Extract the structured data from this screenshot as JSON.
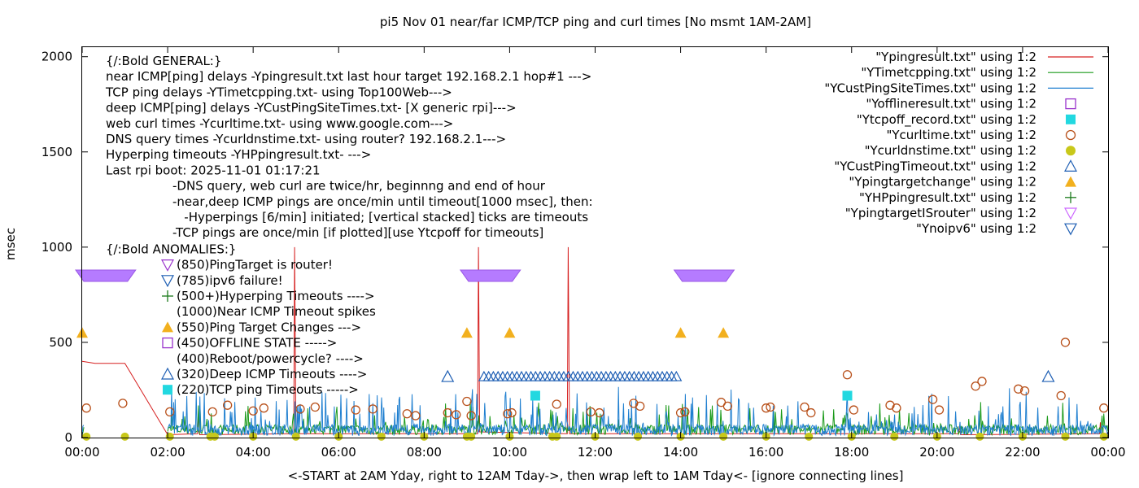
{
  "chart_data": {
    "type": "line",
    "title": "pi5 Nov 01  near/far ICMP/TCP ping and curl times [No msmt 1AM-2AM]",
    "xlabel": "<-START at 2AM Yday, right to 12AM Tday->, then wrap left to 1AM Tday<- [ignore connecting lines]",
    "ylabel": "msec",
    "xlim": [
      0,
      24
    ],
    "ylim": [
      0,
      2050
    ],
    "grid": false,
    "legend_position": "top-right",
    "x_ticks": [
      {
        "x": 0,
        "label": "00:00"
      },
      {
        "x": 2,
        "label": "02:00"
      },
      {
        "x": 4,
        "label": "04:00"
      },
      {
        "x": 6,
        "label": "06:00"
      },
      {
        "x": 8,
        "label": "08:00"
      },
      {
        "x": 10,
        "label": "10:00"
      },
      {
        "x": 12,
        "label": "12:00"
      },
      {
        "x": 14,
        "label": "14:00"
      },
      {
        "x": 16,
        "label": "16:00"
      },
      {
        "x": 18,
        "label": "18:00"
      },
      {
        "x": 20,
        "label": "20:00"
      },
      {
        "x": 22,
        "label": "22:00"
      },
      {
        "x": 24,
        "label": "00:00"
      }
    ],
    "y_ticks": [
      {
        "y": 0,
        "label": "0"
      },
      {
        "y": 500,
        "label": "500"
      },
      {
        "y": 1000,
        "label": "1000"
      },
      {
        "y": 1500,
        "label": "1500"
      },
      {
        "y": 2000,
        "label": "2000"
      }
    ],
    "annotations_left": [
      "{/:Bold GENERAL:}",
      "near ICMP[ping] delays -Ypingresult.txt last hour target 192.168.2.1 hop#1 --->",
      "TCP ping delays -YTimetcpping.txt- using Top100Web--->",
      "deep ICMP[ping] delays -YCustPingSiteTimes.txt- [X generic rpi]--->",
      "web curl times -Ycurltime.txt- using www.google.com--->",
      "DNS query times -Ycurldnstime.txt- using router? 192.168.2.1--->",
      "Hyperping timeouts -YHPpingresult.txt- --->",
      "Last rpi boot: 2025-11-01 01:17:21"
    ],
    "annotations_indent": [
      "-DNS query, web curl are twice/hr, beginnng and end of hour",
      "-near,deep ICMP pings are once/min until timeout[1000 msec], then:",
      "  -Hyperpings [6/min] initiated; [vertical stacked] ticks are timeouts",
      "-TCP pings are once/min [if plotted][use Ytcpoff for timeouts]"
    ],
    "anomalies_title": "{/:Bold ANOMALIES:}",
    "anomalies": [
      {
        "label": "(850)PingTarget is router!",
        "marker": "tri-down-open",
        "color": "#9933cc"
      },
      {
        "label": "(785)ipv6 failure!",
        "marker": "tri-down-open",
        "color": "#1f5fb4"
      },
      {
        "label": "(500+)Hyperping Timeouts ---->",
        "marker": "plus",
        "color": "#1a7a1a"
      },
      {
        "label": "(1000)Near ICMP Timeout spikes",
        "marker": "none",
        "color": "#000000"
      },
      {
        "label": "(550)Ping Target Changes --->",
        "marker": "tri-up-filled",
        "color": "#f2b01e"
      },
      {
        "label": "(450)OFFLINE STATE ----->",
        "marker": "square-open",
        "color": "#9933cc"
      },
      {
        "label": "(400)Reboot/powercycle? ---->",
        "marker": "none",
        "color": "#000000"
      },
      {
        "label": "(320)Deep ICMP Timeouts ---->",
        "marker": "tri-up-open",
        "color": "#1f5fb4"
      },
      {
        "label": "(220)TCP ping Timeouts ----->",
        "marker": "square-filled",
        "color": "#22d8e0"
      }
    ],
    "legend": [
      {
        "label": "\"Ypingresult.txt\" using 1:2",
        "marker": "line",
        "color": "#d62020"
      },
      {
        "label": "\"YTimetcpping.txt\" using 1:2",
        "marker": "line",
        "color": "#1a9a1a"
      },
      {
        "label": "\"YCustPingSiteTimes.txt\" using 1:2",
        "marker": "line",
        "color": "#1f7fd0"
      },
      {
        "label": "\"Yofflineresult.txt\" using 1:2",
        "marker": "square-open",
        "color": "#9933cc"
      },
      {
        "label": "\"Ytcpoff_record.txt\" using 1:2",
        "marker": "square-filled",
        "color": "#22d8e0"
      },
      {
        "label": "\"Ycurltime.txt\" using 1:2",
        "marker": "circle-open",
        "color": "#b8501a"
      },
      {
        "label": "\"Ycurldnstime.txt\" using 1:2",
        "marker": "circle-filled",
        "color": "#c8c81a"
      },
      {
        "label": "\"YCustPingTimeout.txt\" using 1:2",
        "marker": "tri-up-open",
        "color": "#1f5fb4"
      },
      {
        "label": "\"Ypingtargetchange\" using 1:2",
        "marker": "tri-up-filled",
        "color": "#f2b01e"
      },
      {
        "label": "\"YHPpingresult.txt\" using 1:2",
        "marker": "plus",
        "color": "#1a7a1a"
      },
      {
        "label": "\"YpingtargetISrouter\" using 1:2",
        "marker": "tri-down-open",
        "color": "#cc66ff"
      },
      {
        "label": "\"Ynoipv6\" using 1:2",
        "marker": "tri-down-open",
        "color": "#1f5fb4"
      }
    ],
    "series": [
      {
        "name": "\"Ypingresult.txt\" using 1:2",
        "color": "#d62020",
        "points": [
          [
            0.0,
            400
          ],
          [
            0.3,
            390
          ],
          [
            1.0,
            390
          ],
          [
            2.0,
            15
          ],
          [
            2.7,
            20
          ],
          [
            2.72,
            120
          ],
          [
            2.75,
            15
          ],
          [
            4.95,
            20
          ],
          [
            4.97,
            1000
          ],
          [
            5.0,
            30
          ],
          [
            5.05,
            20
          ],
          [
            9.25,
            20
          ],
          [
            9.27,
            1000
          ],
          [
            9.3,
            30
          ],
          [
            11.35,
            20
          ],
          [
            11.37,
            1000
          ],
          [
            11.4,
            20
          ],
          [
            20.5,
            20
          ],
          [
            20.52,
            60
          ],
          [
            20.55,
            15
          ],
          [
            23.8,
            20
          ],
          [
            23.82,
            80
          ],
          [
            23.85,
            20
          ],
          [
            24.0,
            20
          ]
        ]
      },
      {
        "name": "\"YTimetcpping.txt\" using 1:2",
        "color": "#1a9a1a",
        "noise": {
          "start": 0.0,
          "end": 24.0,
          "base": 35,
          "amp": 55,
          "spike_prob": 0.12,
          "spike_amp": 130,
          "step": 0.02,
          "seed": 7,
          "gaps": [
            [
              0.05,
              2.0
            ]
          ]
        }
      },
      {
        "name": "\"YCustPingSiteTimes.txt\" using 1:2",
        "color": "#1f7fd0",
        "noise": {
          "start": 0.0,
          "end": 24.0,
          "base": 25,
          "amp": 60,
          "spike_prob": 0.15,
          "spike_amp": 200,
          "step": 0.017,
          "seed": 13,
          "gaps": [
            [
              0.05,
              2.0
            ]
          ]
        }
      }
    ],
    "ping_target_isrouter_bars": [
      {
        "x_start": 0.0,
        "x_end": 1.1,
        "y": 850
      },
      {
        "x_start": 9.0,
        "x_end": 10.1,
        "y": 850
      },
      {
        "x_start": 14.0,
        "x_end": 15.1,
        "y": 850
      }
    ],
    "ping_target_changes": [
      [
        0.0,
        550
      ],
      [
        9.0,
        550
      ],
      [
        10.0,
        550
      ],
      [
        14.0,
        550
      ],
      [
        15.0,
        550
      ]
    ],
    "offline_state": [],
    "deep_icmp_timeouts": {
      "single": [
        [
          8.55,
          320
        ],
        [
          22.6,
          320
        ]
      ],
      "dense_range": [
        9.4,
        13.9
      ],
      "dense_count": 42,
      "y": 320
    },
    "tcp_ping_timeouts": [
      [
        10.6,
        220
      ],
      [
        17.9,
        220
      ]
    ],
    "curl_times": [
      [
        0.1,
        155
      ],
      [
        0.95,
        180
      ],
      [
        2.05,
        135
      ],
      [
        3.05,
        135
      ],
      [
        3.4,
        170
      ],
      [
        4.0,
        140
      ],
      [
        4.25,
        155
      ],
      [
        5.1,
        150
      ],
      [
        5.45,
        160
      ],
      [
        6.4,
        145
      ],
      [
        6.8,
        150
      ],
      [
        7.6,
        125
      ],
      [
        7.8,
        115
      ],
      [
        8.55,
        130
      ],
      [
        8.75,
        120
      ],
      [
        9.0,
        190
      ],
      [
        9.1,
        115
      ],
      [
        9.95,
        125
      ],
      [
        10.05,
        130
      ],
      [
        11.1,
        175
      ],
      [
        11.9,
        135
      ],
      [
        12.1,
        130
      ],
      [
        12.9,
        180
      ],
      [
        13.05,
        165
      ],
      [
        14.0,
        130
      ],
      [
        14.1,
        135
      ],
      [
        14.95,
        185
      ],
      [
        15.1,
        165
      ],
      [
        16.0,
        155
      ],
      [
        16.1,
        160
      ],
      [
        16.9,
        160
      ],
      [
        17.05,
        130
      ],
      [
        17.9,
        330
      ],
      [
        18.05,
        145
      ],
      [
        18.9,
        170
      ],
      [
        19.05,
        155
      ],
      [
        19.9,
        200
      ],
      [
        20.05,
        145
      ],
      [
        20.9,
        270
      ],
      [
        21.05,
        295
      ],
      [
        21.9,
        255
      ],
      [
        22.05,
        245
      ],
      [
        22.9,
        220
      ],
      [
        23.0,
        500
      ],
      [
        23.9,
        155
      ]
    ],
    "dns_times": [
      [
        0.1,
        5
      ],
      [
        1.0,
        5
      ],
      [
        2.05,
        5
      ],
      [
        3.0,
        5
      ],
      [
        3.1,
        5
      ],
      [
        4.0,
        5
      ],
      [
        5.0,
        5
      ],
      [
        6.0,
        5
      ],
      [
        7.0,
        5
      ],
      [
        8.0,
        5
      ],
      [
        9.0,
        5
      ],
      [
        9.1,
        5
      ],
      [
        10.0,
        5
      ],
      [
        11.0,
        5
      ],
      [
        11.1,
        5
      ],
      [
        12.0,
        5
      ],
      [
        13.0,
        5
      ],
      [
        14.0,
        5
      ],
      [
        15.0,
        5
      ],
      [
        16.0,
        5
      ],
      [
        17.0,
        5
      ],
      [
        18.0,
        5
      ],
      [
        19.0,
        5
      ],
      [
        20.0,
        5
      ],
      [
        21.0,
        5
      ],
      [
        22.0,
        5
      ],
      [
        23.0,
        5
      ],
      [
        23.9,
        5
      ]
    ],
    "hyperping_timeouts": []
  }
}
